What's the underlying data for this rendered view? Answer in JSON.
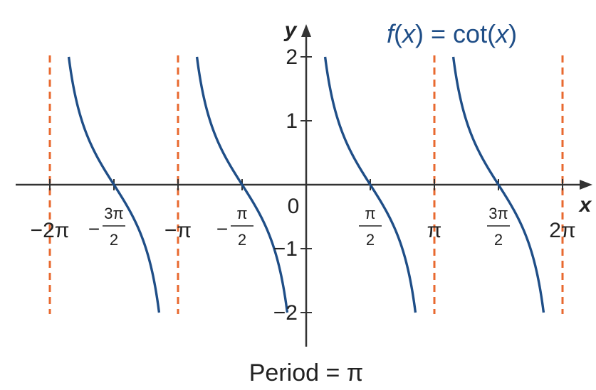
{
  "chart_data": {
    "type": "line",
    "title": "f(x) = cot(x)",
    "title_parts": {
      "fname": "f",
      "paren_open": "(",
      "var": "x",
      "paren_close": ")",
      "rest": " = cot(",
      "var2": "x",
      "close": ")"
    },
    "xlabel": "x",
    "ylabel": "y",
    "origin_label": "0",
    "caption": "Period = π",
    "xlim": [
      -6.283185,
      6.283185
    ],
    "ylim": [
      -2,
      2
    ],
    "grid": false,
    "series": [
      {
        "function": "cot",
        "color": "#1f4e87"
      }
    ],
    "asymptotes": {
      "x": [
        -6.283185,
        -3.141593,
        3.141593,
        6.283185
      ],
      "color": "#e8692f",
      "style": "dashed"
    },
    "x_ticks": [
      {
        "value": -6.283185,
        "kind": "plain",
        "text": "−2π"
      },
      {
        "value": -4.712389,
        "kind": "frac",
        "sign": "−",
        "num": "3π",
        "den": "2"
      },
      {
        "value": -3.141593,
        "kind": "plain",
        "text": "−π"
      },
      {
        "value": -1.570796,
        "kind": "frac",
        "sign": "−",
        "num": "π",
        "den": "2"
      },
      {
        "value": 1.570796,
        "kind": "frac",
        "sign": "",
        "num": "π",
        "den": "2"
      },
      {
        "value": 3.141593,
        "kind": "plain",
        "text": "π"
      },
      {
        "value": 4.712389,
        "kind": "frac",
        "sign": "",
        "num": "3π",
        "den": "2"
      },
      {
        "value": 6.283185,
        "kind": "plain",
        "text": "2π"
      }
    ],
    "y_ticks": [
      {
        "value": 2,
        "text": "2"
      },
      {
        "value": 1,
        "text": "1"
      },
      {
        "value": -1,
        "text": "−1"
      },
      {
        "value": -2,
        "text": "−2"
      }
    ]
  }
}
